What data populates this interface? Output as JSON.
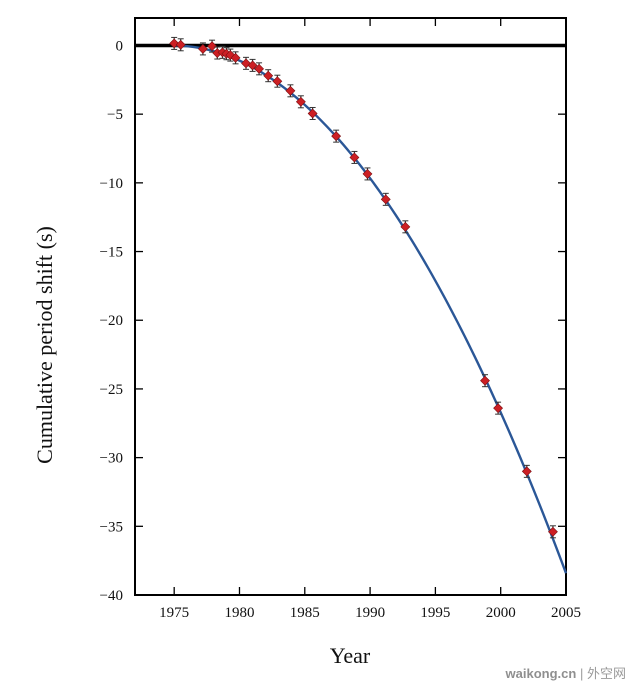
{
  "chart_data": {
    "type": "scatter",
    "xlabel": "Year",
    "ylabel": "Cumulative period shift (s)",
    "xlim": [
      1972,
      2005
    ],
    "ylim": [
      -40,
      2
    ],
    "x_ticks": [
      1975,
      1980,
      1985,
      1990,
      1995,
      2000,
      2005
    ],
    "y_ticks": [
      0,
      -5,
      -10,
      -15,
      -20,
      -25,
      -30,
      -35,
      -40
    ],
    "grid": false,
    "zero_line": true,
    "fit_curve": {
      "model": "parabola",
      "reference_year": 1974.9,
      "coefficient": -0.0424,
      "x_range": [
        1974.9,
        2005
      ],
      "color": "#2b5797"
    },
    "points": [
      {
        "x": 1975.0,
        "y": 0.15
      },
      {
        "x": 1975.5,
        "y": 0.05
      },
      {
        "x": 1977.2,
        "y": -0.25
      },
      {
        "x": 1977.9,
        "y": -0.05
      },
      {
        "x": 1978.3,
        "y": -0.55
      },
      {
        "x": 1978.7,
        "y": -0.5
      },
      {
        "x": 1979.0,
        "y": -0.6
      },
      {
        "x": 1979.3,
        "y": -0.7
      },
      {
        "x": 1979.7,
        "y": -0.9
      },
      {
        "x": 1980.5,
        "y": -1.3
      },
      {
        "x": 1981.0,
        "y": -1.45
      },
      {
        "x": 1981.5,
        "y": -1.7
      },
      {
        "x": 1982.2,
        "y": -2.2
      },
      {
        "x": 1982.9,
        "y": -2.6
      },
      {
        "x": 1983.9,
        "y": -3.3
      },
      {
        "x": 1984.7,
        "y": -4.1
      },
      {
        "x": 1985.6,
        "y": -4.95
      },
      {
        "x": 1987.4,
        "y": -6.6
      },
      {
        "x": 1988.8,
        "y": -8.15
      },
      {
        "x": 1989.8,
        "y": -9.35
      },
      {
        "x": 1991.2,
        "y": -11.2
      },
      {
        "x": 1992.7,
        "y": -13.2
      },
      {
        "x": 1998.8,
        "y": -24.4
      },
      {
        "x": 1999.8,
        "y": -26.4
      },
      {
        "x": 2002.0,
        "y": -31.0
      },
      {
        "x": 2004.0,
        "y": -35.4
      }
    ],
    "marker_color": "#cc1f24",
    "error_bar_color": "#333333"
  },
  "watermark": {
    "brand": "waikong.cn",
    "separator": "|",
    "site": "外空网"
  }
}
